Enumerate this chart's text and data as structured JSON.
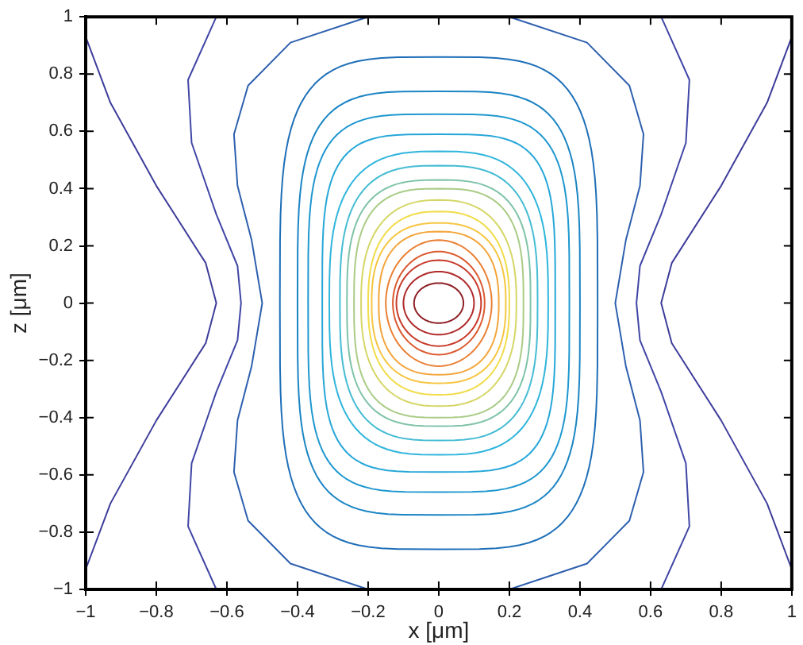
{
  "chart_data": {
    "type": "line",
    "xlabel": "x [μm]",
    "ylabel": "z [μm]",
    "xlim": [
      -1,
      1
    ],
    "ylim": [
      -1,
      1
    ],
    "xticks": [
      -1,
      -0.8,
      -0.6,
      -0.4,
      -0.2,
      0,
      0.2,
      0.4,
      0.6,
      0.8,
      1
    ],
    "yticks": [
      -1,
      -0.8,
      -0.6,
      -0.4,
      -0.2,
      0,
      0.2,
      0.4,
      0.6,
      0.8,
      1
    ],
    "grid": false,
    "series": [
      {
        "color": "#3d3d9b",
        "x": [
          -1,
          -0.93,
          -0.8,
          -0.66,
          -0.63,
          -0.66,
          -0.8,
          -0.93,
          -1
        ],
        "values": [
          0.93,
          0.7,
          0.41,
          0.14,
          0,
          -0.14,
          -0.41,
          -0.7,
          -0.93
        ]
      },
      {
        "color": "#3d3d9b",
        "x": [
          1,
          0.93,
          0.8,
          0.66,
          0.63,
          0.66,
          0.8,
          0.93,
          1
        ],
        "values": [
          0.93,
          0.7,
          0.41,
          0.14,
          0,
          -0.14,
          -0.41,
          -0.7,
          -0.93
        ]
      },
      {
        "color": "#4046a5",
        "x": [
          -0.63,
          -0.71,
          -0.7,
          -0.63,
          -0.57,
          -0.56,
          -0.57,
          -0.63,
          -0.7,
          -0.71,
          -0.63
        ],
        "values": [
          1,
          0.78,
          0.56,
          0.31,
          0.13,
          0,
          -0.13,
          -0.31,
          -0.56,
          -0.78,
          -1
        ]
      },
      {
        "color": "#4046a5",
        "x": [
          0.63,
          0.71,
          0.7,
          0.63,
          0.57,
          0.56,
          0.57,
          0.63,
          0.7,
          0.71,
          0.63
        ],
        "values": [
          1,
          0.78,
          0.56,
          0.31,
          0.13,
          0,
          -0.13,
          -0.31,
          -0.56,
          -0.78,
          -1
        ]
      },
      {
        "color": "#2d5fae",
        "x": [
          -0.2,
          -0.42,
          -0.54,
          -0.58,
          -0.57,
          -0.53,
          -0.5,
          -0.53,
          -0.57,
          -0.58,
          -0.54,
          -0.42,
          -0.2
        ],
        "values": [
          1,
          0.91,
          0.76,
          0.59,
          0.41,
          0.22,
          0,
          -0.22,
          -0.41,
          -0.59,
          -0.76,
          -0.91,
          -1
        ]
      },
      {
        "color": "#2d5fae",
        "x": [
          0.2,
          0.42,
          0.54,
          0.58,
          0.57,
          0.53,
          0.5,
          0.53,
          0.57,
          0.58,
          0.54,
          0.42,
          0.2
        ],
        "values": [
          1,
          0.91,
          0.76,
          0.59,
          0.41,
          0.22,
          0,
          -0.22,
          -0.41,
          -0.59,
          -0.76,
          -0.91,
          -1
        ]
      }
    ]
  }
}
